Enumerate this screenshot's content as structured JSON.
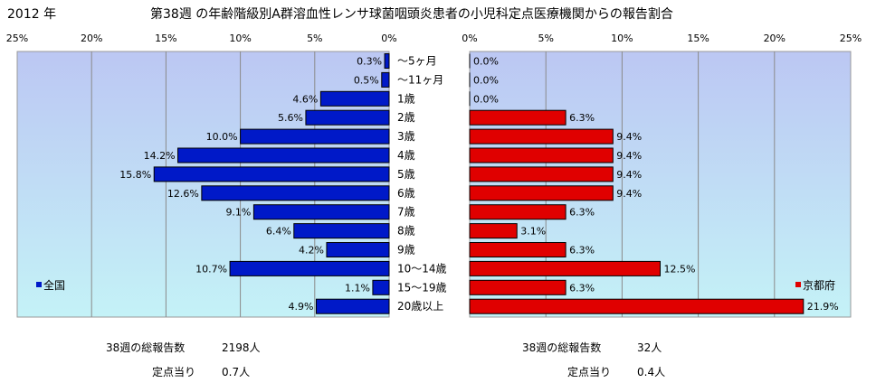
{
  "header": {
    "year": "2012 年",
    "title": "第38週 の年齢階級別A群溶血性レンサ球菌咽頭炎患者の小児科定点医療機関からの報告割合"
  },
  "colors": {
    "panel_bg_top": "#bcc7f3",
    "panel_bg_bottom": "#c4f2f7",
    "national_bar": "#0019c8",
    "kyoto_bar": "#e00000",
    "grid": "#8a8a8a"
  },
  "chart_data": {
    "type": "bar",
    "orientation": "horizontal",
    "categories": [
      "～5ヶ月",
      "～11ヶ月",
      "1歳",
      "2歳",
      "3歳",
      "4歳",
      "5歳",
      "6歳",
      "7歳",
      "8歳",
      "9歳",
      "10～14歳",
      "15～19歳",
      "20歳以上"
    ],
    "series": [
      {
        "name": "全国",
        "values": [
          0.3,
          0.5,
          4.6,
          5.6,
          10.0,
          14.2,
          15.8,
          12.6,
          9.1,
          6.4,
          4.2,
          10.7,
          1.1,
          4.9
        ],
        "labels": [
          "0.3%",
          "0.5%",
          "4.6%",
          "5.6%",
          "10.0%",
          "14.2%",
          "15.8%",
          "12.6%",
          "9.1%",
          "6.4%",
          "4.2%",
          "10.7%",
          "1.1%",
          "4.9%"
        ]
      },
      {
        "name": "京都府",
        "values": [
          0.0,
          0.0,
          0.0,
          6.3,
          9.4,
          9.4,
          9.4,
          9.4,
          6.3,
          3.1,
          6.3,
          12.5,
          6.3,
          21.9
        ],
        "labels": [
          "0.0%",
          "0.0%",
          "0.0%",
          "6.3%",
          "9.4%",
          "9.4%",
          "9.4%",
          "9.4%",
          "6.3%",
          "3.1%",
          "6.3%",
          "12.5%",
          "6.3%",
          "21.9%"
        ]
      }
    ],
    "axis_range": [
      0,
      25
    ],
    "ticks_left": [
      "25%",
      "20%",
      "15%",
      "10%",
      "5%",
      "0%"
    ],
    "ticks_right": [
      "0%",
      "5%",
      "10%",
      "15%",
      "20%",
      "25%"
    ],
    "grid": true
  },
  "footer": {
    "national": {
      "total_label": "38週の総報告数",
      "total_value": "2198人",
      "per_label": "定点当り",
      "per_value": "0.7人"
    },
    "kyoto": {
      "total_label": "38週の総報告数",
      "total_value": "32人",
      "per_label": "定点当り",
      "per_value": "0.4人"
    }
  }
}
